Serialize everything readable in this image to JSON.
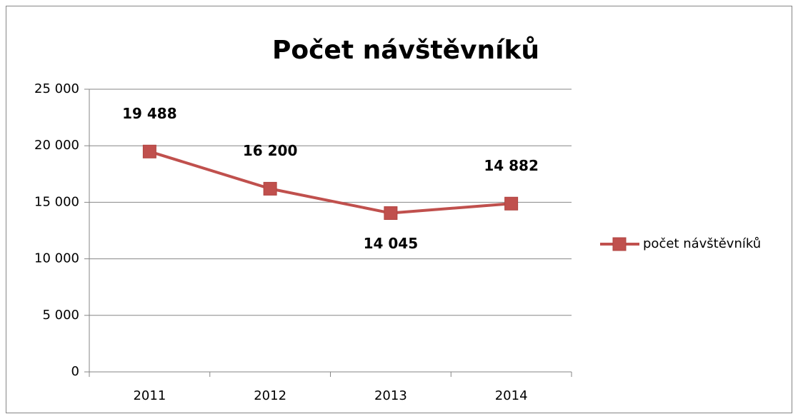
{
  "chart_data": {
    "type": "line",
    "title": "Počet návštěvníků",
    "categories": [
      "2011",
      "2012",
      "2013",
      "2014"
    ],
    "series": [
      {
        "name": "počet návštěvníků",
        "color": "#c0504d",
        "values": [
          19488,
          16200,
          14045,
          14882
        ],
        "value_labels": [
          "19 488",
          "16 200",
          "14 045",
          "14 882"
        ]
      }
    ],
    "ylim": [
      0,
      25000
    ],
    "yticks": [
      0,
      {
        "value": 5000,
        "label": "5 000"
      },
      {
        "value": 10000,
        "label": "10 000"
      },
      {
        "value": 15000,
        "label": "15 000"
      },
      {
        "value": 20000,
        "label": "20 000"
      },
      {
        "value": 25000,
        "label": "25 000"
      }
    ],
    "grid": true,
    "legend": "right"
  }
}
